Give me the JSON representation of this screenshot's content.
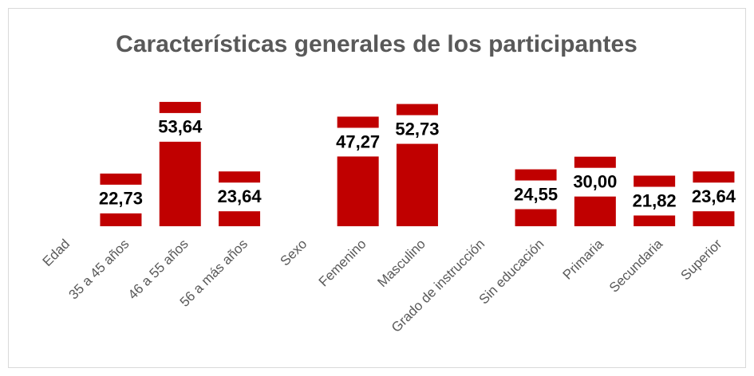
{
  "chart_data": {
    "type": "bar",
    "title": "Características generales de los participantes",
    "categories": [
      "Edad",
      "35 a 45 años",
      "46 a 55 años",
      "56 a más años",
      "Sexo",
      "Femenino",
      "Masculino",
      "Grado de instrucción",
      "Sin educación",
      "Primaria",
      "Secundaria",
      "Superior"
    ],
    "values": [
      null,
      22.73,
      53.64,
      23.64,
      null,
      47.27,
      52.73,
      null,
      24.55,
      30.0,
      21.82,
      23.64
    ],
    "value_labels": [
      null,
      "22,73",
      "53,64",
      "23,64",
      null,
      "47,27",
      "52,73",
      null,
      "24,55",
      "30,00",
      "21,82",
      "23,64"
    ],
    "color": "#c00000"
  }
}
